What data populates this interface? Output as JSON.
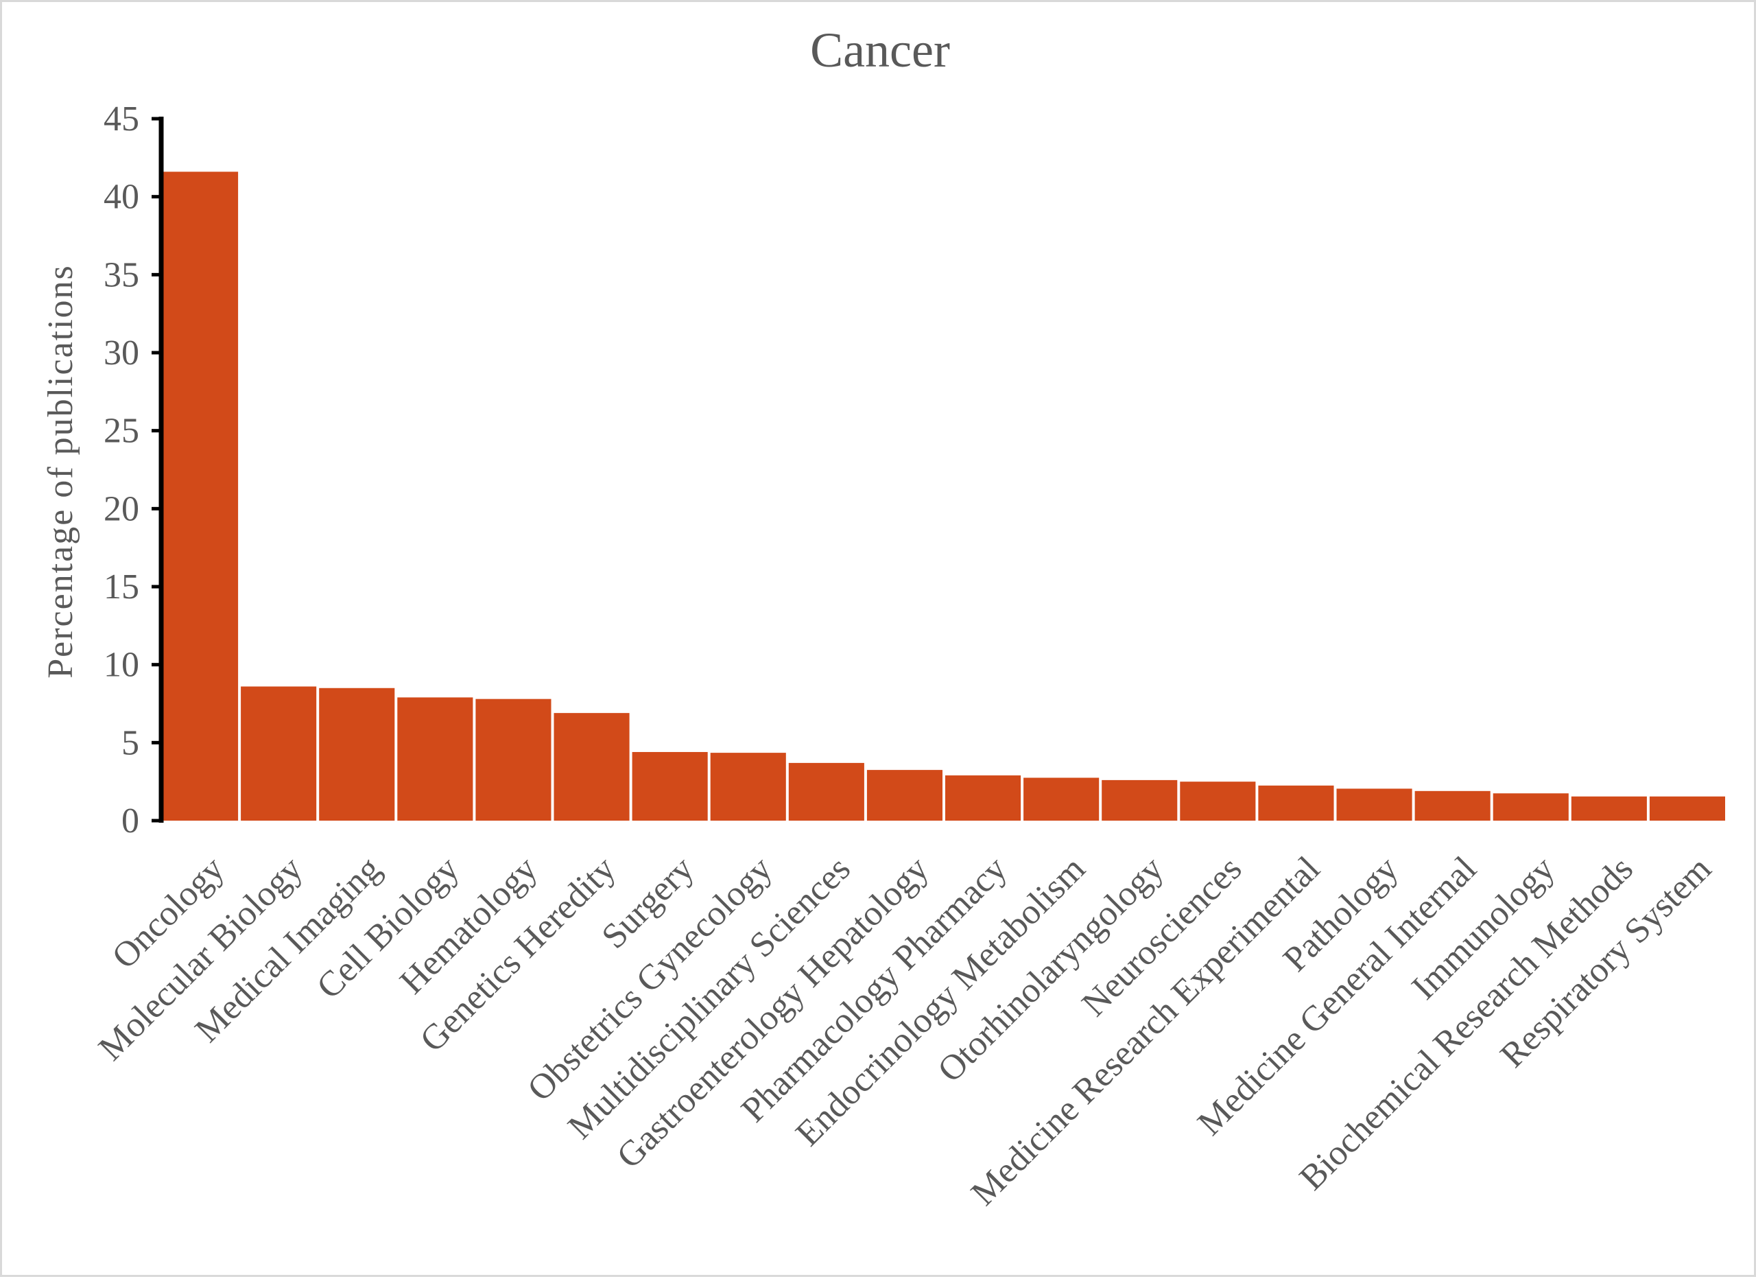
{
  "chart_data": {
    "type": "bar",
    "title": "Cancer",
    "xlabel": "",
    "ylabel": "Percentage of publications",
    "ylim": [
      0,
      45
    ],
    "yticks": [
      0,
      5,
      10,
      15,
      20,
      25,
      30,
      35,
      40,
      45
    ],
    "grid": false,
    "legend": "none",
    "bar_color": "#d24a19",
    "categories": [
      "Oncology",
      "Molecular Biology",
      "Medical Imaging",
      "Cell Biology",
      "Hematology",
      "Genetics Heredity",
      "Surgery",
      "Obstetrics Gynecology",
      "Multidisciplinary Sciences",
      "Gastroenterology Hepatology",
      "Pharmacology Pharmacy",
      "Endocrinology Metabolism",
      "Otorhinolaryngology",
      "Neurosciences",
      "Medicine Research Experimental",
      "Pathology",
      "Medicine General Internal",
      "Immunology",
      "Biochemical Research Methods",
      "Respiratory System"
    ],
    "values": [
      41.6,
      8.6,
      8.5,
      7.9,
      7.8,
      6.9,
      4.4,
      4.35,
      3.7,
      3.25,
      2.9,
      2.75,
      2.6,
      2.5,
      2.25,
      2.05,
      1.9,
      1.75,
      1.55,
      1.55
    ]
  }
}
